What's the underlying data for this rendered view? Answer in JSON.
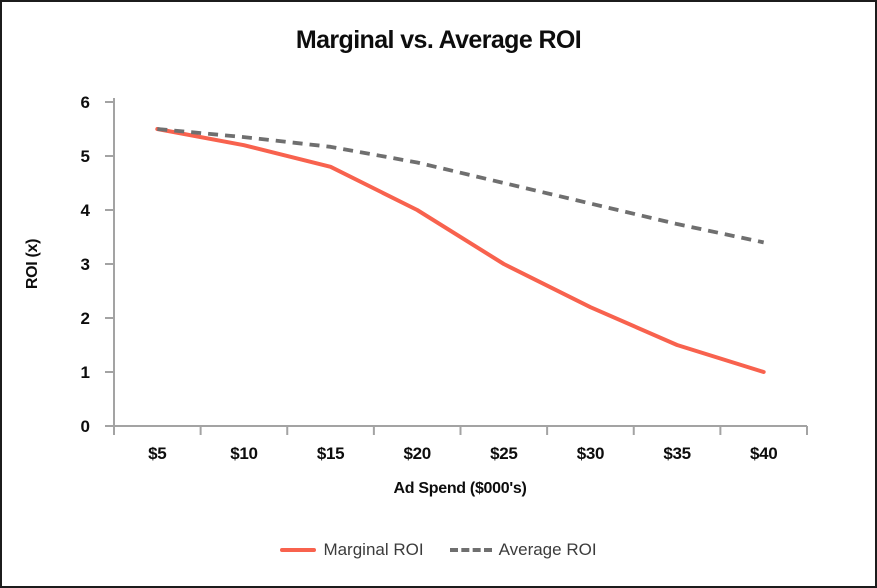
{
  "chart_data": {
    "type": "line",
    "title": "Marginal vs. Average ROI",
    "xlabel": "Ad Spend ($000's)",
    "ylabel": "ROI (x)",
    "categories": [
      "$5",
      "$10",
      "$15",
      "$20",
      "$25",
      "$30",
      "$35",
      "$40"
    ],
    "series": [
      {
        "name": "Marginal ROI",
        "style": "solid",
        "color": "#f8624e",
        "values": [
          5.5,
          5.2,
          4.8,
          4.0,
          3.0,
          2.2,
          1.5,
          1.0
        ]
      },
      {
        "name": "Average ROI",
        "style": "dashed",
        "color": "#6f6f6f",
        "values": [
          5.5,
          5.35,
          5.17,
          4.88,
          4.5,
          4.12,
          3.74,
          3.4
        ]
      }
    ],
    "ylim": [
      0,
      6
    ],
    "ytick_step": 1,
    "ytick_labels": [
      "0",
      "1",
      "2",
      "3",
      "4",
      "5",
      "6"
    ],
    "grid": false,
    "legend_position": "bottom"
  },
  "colors": {
    "accent_red": "#f8624e",
    "accent_gray": "#6f6f6f",
    "axis_line": "#a3a3a3",
    "text": "#0d0d0d",
    "legend_text": "#3c3c3c",
    "background": "#ffffff",
    "frame_border": "#1c1c1c"
  }
}
